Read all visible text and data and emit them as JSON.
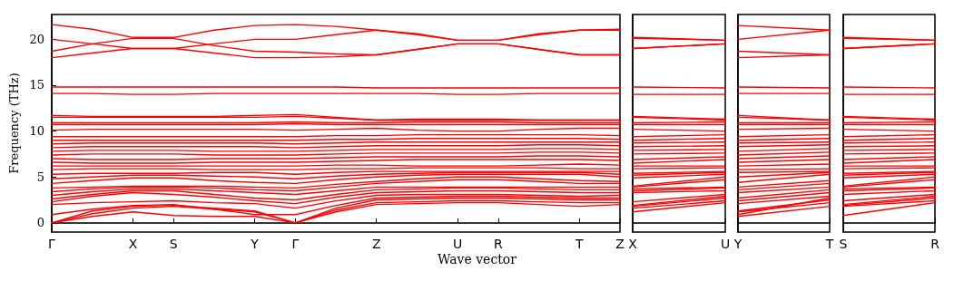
{
  "chart_data": [
    {
      "type": "line",
      "ylabel": "Frequency (THz)",
      "xlabel": "Wave vector",
      "color": "#ff0000",
      "marker": "none",
      "line_style": "solid",
      "categories": [
        "Γ",
        null,
        "X",
        "S",
        null,
        "Y",
        "Γ",
        null,
        "Z",
        null,
        "U",
        "R",
        null,
        "T",
        "Z"
      ],
      "ylim": [
        -1,
        22.7
      ],
      "yticks": [
        0,
        5,
        10,
        15,
        20
      ],
      "ref_lines": [
        {
          "axis": "y",
          "value": 0,
          "color": "#0000ff",
          "line_style": "dotted"
        }
      ],
      "series": [
        {
          "values": [
            0,
            0.7,
            1.2,
            0.8,
            0.7,
            0.7,
            0,
            1.2,
            2.0,
            2.1,
            2.2,
            2.2,
            2.0,
            1.8,
            2.0
          ]
        },
        {
          "values": [
            0,
            1.0,
            1.6,
            1.8,
            1.5,
            1.2,
            0,
            1.4,
            2.2,
            2.3,
            2.4,
            2.4,
            2.3,
            2.2,
            2.2
          ]
        },
        {
          "values": [
            0,
            1.3,
            1.8,
            1.9,
            1.6,
            1.3,
            0,
            1.6,
            2.5,
            2.6,
            2.7,
            2.7,
            2.6,
            2.5,
            2.5
          ]
        },
        {
          "values": [
            0.9,
            1.5,
            1.9,
            2.0,
            1.5,
            0.9,
            0.9,
            1.9,
            2.7,
            2.8,
            2.9,
            2.9,
            2.8,
            2.7,
            2.7
          ]
        },
        {
          "values": [
            2.0,
            2.2,
            2.3,
            2.4,
            2.2,
            2.1,
            1.6,
            2.4,
            3.0,
            3.1,
            3.1,
            3.1,
            3.0,
            2.9,
            3.0
          ]
        },
        {
          "values": [
            2.3,
            2.9,
            3.3,
            3.1,
            2.8,
            2.4,
            2.1,
            2.8,
            3.3,
            3.4,
            3.5,
            3.5,
            3.4,
            3.3,
            3.3
          ]
        },
        {
          "values": [
            2.6,
            3.1,
            3.5,
            3.5,
            3.1,
            2.7,
            2.5,
            3.1,
            3.6,
            3.7,
            3.8,
            3.8,
            3.7,
            3.6,
            3.6
          ]
        },
        {
          "values": [
            3.0,
            3.4,
            3.7,
            3.7,
            3.5,
            3.3,
            3.1,
            3.5,
            3.9,
            3.9,
            3.9,
            3.9,
            3.9,
            3.9,
            3.9
          ]
        },
        {
          "values": [
            3.4,
            3.7,
            3.9,
            3.9,
            3.8,
            3.6,
            3.5,
            3.9,
            4.3,
            4.5,
            4.7,
            4.7,
            4.5,
            4.3,
            4.3
          ]
        },
        {
          "values": [
            3.8,
            3.9,
            4.0,
            4.0,
            4.0,
            3.9,
            3.8,
            4.2,
            4.5,
            4.8,
            5.0,
            5.0,
            4.8,
            4.6,
            4.5
          ]
        },
        {
          "values": [
            4.3,
            4.6,
            4.9,
            4.9,
            4.6,
            4.4,
            4.3,
            4.7,
            5.0,
            5.2,
            5.3,
            5.3,
            5.3,
            5.3,
            5.0
          ]
        },
        {
          "values": [
            4.8,
            5.0,
            5.2,
            5.2,
            5.1,
            5.0,
            4.8,
            5.1,
            5.3,
            5.4,
            5.5,
            5.5,
            5.5,
            5.5,
            5.3
          ]
        },
        {
          "values": [
            5.3,
            5.4,
            5.4,
            5.4,
            5.5,
            5.5,
            5.3,
            5.5,
            5.6,
            5.6,
            5.6,
            5.6,
            5.6,
            5.6,
            5.6
          ]
        },
        {
          "values": [
            5.8,
            5.9,
            5.9,
            5.9,
            5.8,
            5.8,
            5.8,
            5.9,
            5.9,
            6.0,
            6.0,
            6.0,
            6.0,
            5.9,
            5.9
          ]
        },
        {
          "values": [
            6.2,
            6.2,
            6.2,
            6.2,
            6.2,
            6.2,
            6.2,
            6.3,
            6.3,
            6.2,
            6.2,
            6.2,
            6.3,
            6.4,
            6.3
          ]
        },
        {
          "values": [
            6.6,
            6.5,
            6.5,
            6.5,
            6.6,
            6.6,
            6.6,
            6.7,
            6.8,
            6.9,
            6.9,
            6.9,
            6.9,
            6.9,
            6.8
          ]
        },
        {
          "values": [
            7.0,
            6.9,
            6.9,
            6.9,
            7.0,
            7.0,
            7.0,
            7.1,
            7.2,
            7.2,
            7.2,
            7.2,
            7.3,
            7.3,
            7.2
          ]
        },
        {
          "values": [
            7.4,
            7.5,
            7.5,
            7.5,
            7.4,
            7.4,
            7.4,
            7.5,
            7.6,
            7.6,
            7.6,
            7.6,
            7.7,
            7.7,
            7.6
          ]
        },
        {
          "values": [
            7.8,
            7.9,
            7.9,
            7.9,
            7.8,
            7.8,
            7.8,
            7.9,
            8.0,
            8.0,
            8.0,
            8.0,
            8.1,
            8.1,
            8.0
          ]
        },
        {
          "values": [
            8.2,
            8.3,
            8.3,
            8.3,
            8.3,
            8.3,
            8.2,
            8.3,
            8.4,
            8.4,
            8.4,
            8.4,
            8.5,
            8.5,
            8.4
          ]
        },
        {
          "values": [
            8.6,
            8.7,
            8.7,
            8.7,
            8.7,
            8.7,
            8.6,
            8.7,
            8.8,
            8.8,
            8.8,
            8.8,
            8.8,
            8.8,
            8.8
          ]
        },
        {
          "values": [
            9.0,
            9.0,
            9.0,
            9.0,
            9.0,
            9.0,
            9.0,
            9.1,
            9.1,
            9.2,
            9.2,
            9.2,
            9.2,
            9.2,
            9.1
          ]
        },
        {
          "values": [
            9.4,
            9.4,
            9.4,
            9.4,
            9.4,
            9.4,
            9.4,
            9.5,
            9.5,
            9.6,
            9.6,
            9.6,
            9.6,
            9.6,
            9.5
          ]
        },
        {
          "values": [
            10.1,
            10.2,
            10.2,
            10.2,
            10.2,
            10.2,
            10.1,
            10.2,
            10.3,
            10.1,
            10.0,
            10.0,
            10.2,
            10.3,
            10.3
          ]
        },
        {
          "values": [
            10.7,
            10.7,
            10.7,
            10.7,
            10.7,
            10.7,
            10.8,
            10.7,
            10.7,
            10.7,
            10.7,
            10.7,
            10.7,
            10.7,
            10.7
          ]
        },
        {
          "values": [
            10.9,
            10.9,
            10.9,
            10.9,
            10.9,
            10.9,
            11.0,
            10.9,
            10.9,
            11.0,
            11.0,
            11.0,
            10.9,
            10.9,
            10.9
          ]
        },
        {
          "values": [
            11.5,
            11.5,
            11.5,
            11.5,
            11.5,
            11.5,
            11.6,
            11.4,
            11.2,
            11.2,
            11.2,
            11.2,
            11.2,
            11.2,
            11.2
          ]
        },
        {
          "values": [
            11.7,
            11.6,
            11.6,
            11.6,
            11.6,
            11.7,
            11.8,
            11.5,
            11.2,
            11.3,
            11.3,
            11.3,
            11.2,
            11.2,
            11.2
          ]
        },
        {
          "values": [
            14.1,
            14.1,
            14.0,
            14.0,
            14.1,
            14.1,
            14.1,
            14.1,
            14.1,
            14.1,
            14.0,
            14.0,
            14.1,
            14.1,
            14.1
          ]
        },
        {
          "values": [
            14.8,
            14.8,
            14.8,
            14.8,
            14.8,
            14.8,
            14.8,
            14.8,
            14.7,
            14.7,
            14.7,
            14.7,
            14.7,
            14.7,
            14.7
          ]
        },
        {
          "values": [
            21.6,
            21.1,
            20.2,
            20.2,
            21.0,
            21.5,
            21.6,
            21.4,
            21.0,
            20.6,
            19.9,
            19.9,
            20.6,
            21.0,
            21.1
          ]
        },
        {
          "values": [
            20.0,
            19.5,
            19.0,
            19.0,
            19.5,
            20.0,
            20.0,
            20.5,
            21.0,
            20.5,
            19.9,
            19.9,
            20.5,
            21.0,
            21.0
          ]
        },
        {
          "values": [
            18.7,
            19.5,
            20.1,
            20.1,
            19.3,
            18.7,
            18.6,
            18.4,
            18.3,
            18.9,
            19.5,
            19.5,
            18.9,
            18.3,
            18.3
          ]
        },
        {
          "values": [
            18.0,
            18.5,
            19.0,
            19.0,
            18.5,
            18.0,
            18.0,
            18.1,
            18.3,
            18.9,
            19.5,
            19.5,
            18.9,
            18.3,
            18.3
          ]
        }
      ]
    },
    {
      "type": "line",
      "color": "#ff0000",
      "marker": "none",
      "line_style": "solid",
      "tick_labels": "x",
      "categories": [
        "X",
        "U"
      ],
      "ylim": [
        -1,
        22.7
      ],
      "ref_lines": [
        {
          "axis": "y",
          "value": 0,
          "color": "#0000ff",
          "line_style": "dotted"
        }
      ],
      "series": [
        {
          "values": [
            1.2,
            2.2
          ]
        },
        {
          "values": [
            1.6,
            2.4
          ]
        },
        {
          "values": [
            1.8,
            2.7
          ]
        },
        {
          "values": [
            1.9,
            2.9
          ]
        },
        {
          "values": [
            2.3,
            3.1
          ]
        },
        {
          "values": [
            3.3,
            3.5
          ]
        },
        {
          "values": [
            3.5,
            3.8
          ]
        },
        {
          "values": [
            3.7,
            3.9
          ]
        },
        {
          "values": [
            3.9,
            4.7
          ]
        },
        {
          "values": [
            4.0,
            5.0
          ]
        },
        {
          "values": [
            4.9,
            5.3
          ]
        },
        {
          "values": [
            5.2,
            5.5
          ]
        },
        {
          "values": [
            5.4,
            5.6
          ]
        },
        {
          "values": [
            5.9,
            6.0
          ]
        },
        {
          "values": [
            6.2,
            6.2
          ]
        },
        {
          "values": [
            6.5,
            6.9
          ]
        },
        {
          "values": [
            6.9,
            7.2
          ]
        },
        {
          "values": [
            7.5,
            7.6
          ]
        },
        {
          "values": [
            7.9,
            8.0
          ]
        },
        {
          "values": [
            8.3,
            8.4
          ]
        },
        {
          "values": [
            8.7,
            8.8
          ]
        },
        {
          "values": [
            9.0,
            9.2
          ]
        },
        {
          "values": [
            9.4,
            9.6
          ]
        },
        {
          "values": [
            10.2,
            10.0
          ]
        },
        {
          "values": [
            10.7,
            10.7
          ]
        },
        {
          "values": [
            10.9,
            11.0
          ]
        },
        {
          "values": [
            11.5,
            11.2
          ]
        },
        {
          "values": [
            11.6,
            11.3
          ]
        },
        {
          "values": [
            14.0,
            14.0
          ]
        },
        {
          "values": [
            14.8,
            14.7
          ]
        },
        {
          "values": [
            20.2,
            19.9
          ]
        },
        {
          "values": [
            20.1,
            19.9
          ]
        },
        {
          "values": [
            19.0,
            19.5
          ]
        },
        {
          "values": [
            19.0,
            19.5
          ]
        }
      ]
    },
    {
      "type": "line",
      "color": "#ff0000",
      "marker": "none",
      "line_style": "solid",
      "tick_labels": "x",
      "categories": [
        "Y",
        "T"
      ],
      "ylim": [
        -1,
        22.7
      ],
      "ref_lines": [
        {
          "axis": "y",
          "value": 0,
          "color": "#0000ff",
          "line_style": "dotted"
        }
      ],
      "series": [
        {
          "values": [
            0.7,
            1.8
          ]
        },
        {
          "values": [
            1.2,
            2.2
          ]
        },
        {
          "values": [
            1.3,
            2.5
          ]
        },
        {
          "values": [
            0.9,
            2.7
          ]
        },
        {
          "values": [
            2.1,
            2.9
          ]
        },
        {
          "values": [
            2.4,
            3.3
          ]
        },
        {
          "values": [
            2.7,
            3.6
          ]
        },
        {
          "values": [
            3.3,
            3.9
          ]
        },
        {
          "values": [
            3.6,
            4.3
          ]
        },
        {
          "values": [
            3.9,
            4.6
          ]
        },
        {
          "values": [
            4.4,
            5.3
          ]
        },
        {
          "values": [
            5.0,
            5.5
          ]
        },
        {
          "values": [
            5.5,
            5.6
          ]
        },
        {
          "values": [
            5.8,
            5.9
          ]
        },
        {
          "values": [
            6.2,
            6.4
          ]
        },
        {
          "values": [
            6.6,
            6.9
          ]
        },
        {
          "values": [
            7.0,
            7.3
          ]
        },
        {
          "values": [
            7.4,
            7.7
          ]
        },
        {
          "values": [
            7.8,
            8.1
          ]
        },
        {
          "values": [
            8.3,
            8.5
          ]
        },
        {
          "values": [
            8.7,
            8.8
          ]
        },
        {
          "values": [
            9.0,
            9.2
          ]
        },
        {
          "values": [
            9.4,
            9.6
          ]
        },
        {
          "values": [
            10.2,
            10.3
          ]
        },
        {
          "values": [
            10.7,
            10.7
          ]
        },
        {
          "values": [
            10.9,
            10.9
          ]
        },
        {
          "values": [
            11.5,
            11.2
          ]
        },
        {
          "values": [
            11.7,
            11.2
          ]
        },
        {
          "values": [
            14.1,
            14.1
          ]
        },
        {
          "values": [
            14.8,
            14.7
          ]
        },
        {
          "values": [
            21.5,
            21.0
          ]
        },
        {
          "values": [
            20.0,
            21.0
          ]
        },
        {
          "values": [
            18.7,
            18.3
          ]
        },
        {
          "values": [
            18.0,
            18.3
          ]
        }
      ]
    },
    {
      "type": "line",
      "color": "#ff0000",
      "marker": "none",
      "line_style": "solid",
      "tick_labels": "x",
      "categories": [
        "S",
        "R"
      ],
      "ylim": [
        -1,
        22.7
      ],
      "ref_lines": [
        {
          "axis": "y",
          "value": 0,
          "color": "#0000ff",
          "line_style": "dotted"
        }
      ],
      "series": [
        {
          "values": [
            0.8,
            2.2
          ]
        },
        {
          "values": [
            1.8,
            2.4
          ]
        },
        {
          "values": [
            1.9,
            2.7
          ]
        },
        {
          "values": [
            2.0,
            2.9
          ]
        },
        {
          "values": [
            2.4,
            3.1
          ]
        },
        {
          "values": [
            3.1,
            3.5
          ]
        },
        {
          "values": [
            3.5,
            3.8
          ]
        },
        {
          "values": [
            3.7,
            3.9
          ]
        },
        {
          "values": [
            3.9,
            4.7
          ]
        },
        {
          "values": [
            4.0,
            5.0
          ]
        },
        {
          "values": [
            4.9,
            5.3
          ]
        },
        {
          "values": [
            5.2,
            5.5
          ]
        },
        {
          "values": [
            5.4,
            5.6
          ]
        },
        {
          "values": [
            5.9,
            6.0
          ]
        },
        {
          "values": [
            6.2,
            6.2
          ]
        },
        {
          "values": [
            6.5,
            6.9
          ]
        },
        {
          "values": [
            6.9,
            7.2
          ]
        },
        {
          "values": [
            7.5,
            7.6
          ]
        },
        {
          "values": [
            7.9,
            8.0
          ]
        },
        {
          "values": [
            8.3,
            8.4
          ]
        },
        {
          "values": [
            8.7,
            8.8
          ]
        },
        {
          "values": [
            9.0,
            9.2
          ]
        },
        {
          "values": [
            9.4,
            9.6
          ]
        },
        {
          "values": [
            10.2,
            10.0
          ]
        },
        {
          "values": [
            10.7,
            10.7
          ]
        },
        {
          "values": [
            10.9,
            11.0
          ]
        },
        {
          "values": [
            11.5,
            11.2
          ]
        },
        {
          "values": [
            11.6,
            11.3
          ]
        },
        {
          "values": [
            14.0,
            14.0
          ]
        },
        {
          "values": [
            14.8,
            14.7
          ]
        },
        {
          "values": [
            20.2,
            19.9
          ]
        },
        {
          "values": [
            20.1,
            19.9
          ]
        },
        {
          "values": [
            19.0,
            19.5
          ]
        },
        {
          "values": [
            19.0,
            19.5
          ]
        }
      ]
    }
  ]
}
